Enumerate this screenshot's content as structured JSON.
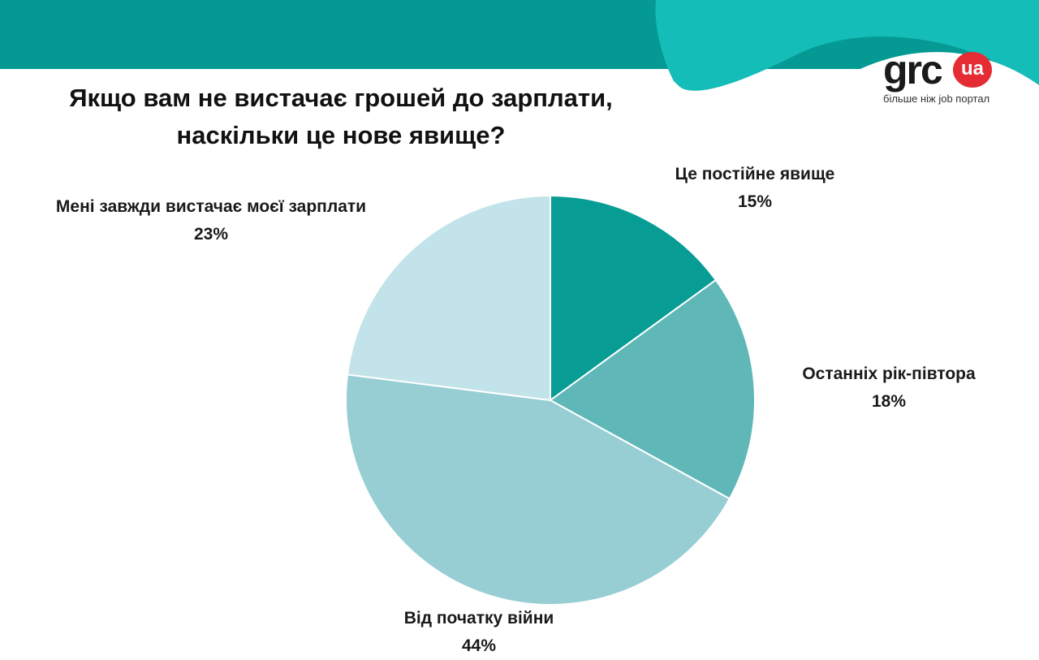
{
  "title_line1": "Якщо вам не вистачає грошей до зарплати,",
  "title_line2": "наскільки це нове явище?",
  "logo": {
    "brand": "grc",
    "badge": "ua",
    "tagline": "більше ніж job портал"
  },
  "colors": {
    "header": "#049a93",
    "accent_wave": "#14bdb7",
    "logo_red": "#e52b34"
  },
  "chart_data": {
    "type": "pie",
    "title": "Якщо вам не вистачає грошей до зарплати, наскільки це нове явище?",
    "slices": [
      {
        "label": "Це постійне явище",
        "value": 15,
        "value_label": "15%",
        "color": "#079c94"
      },
      {
        "label": "Останніх рік-півтора",
        "value": 18,
        "value_label": "18%",
        "color": "#5fb7b8"
      },
      {
        "label": "Від початку війни",
        "value": 44,
        "value_label": "44%",
        "color": "#96ced3"
      },
      {
        "label": "Мені завжди вистачає моєї зарплати",
        "value": 23,
        "value_label": "23%",
        "color": "#c2e3e9"
      }
    ]
  }
}
